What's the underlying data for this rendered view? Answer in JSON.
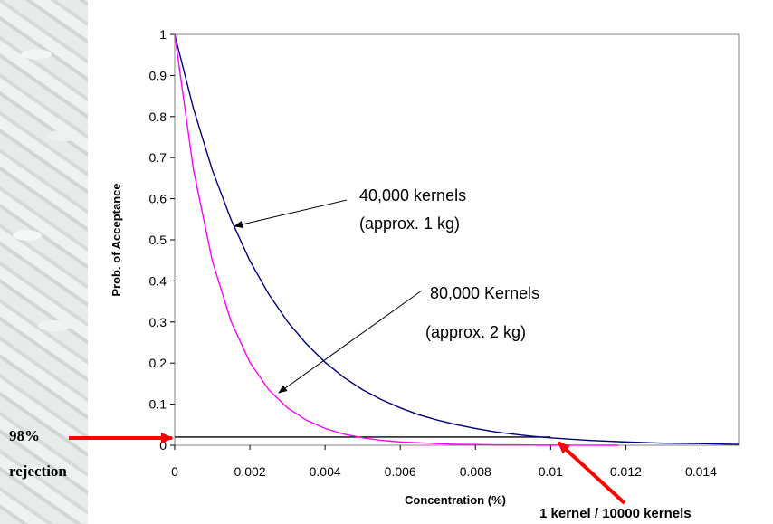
{
  "chart_data": {
    "type": "line",
    "xlabel": "Concentration (%)",
    "ylabel": "Prob. of Acceptance",
    "xlim": [
      0,
      0.015
    ],
    "ylim": [
      0,
      1
    ],
    "x_ticks": [
      "0",
      "0.002",
      "0.004",
      "0.006",
      "0.008",
      "0.01",
      "0.012",
      "0.014"
    ],
    "y_ticks": [
      "0",
      "0.1",
      "0.2",
      "0.3",
      "0.4",
      "0.5",
      "0.6",
      "0.7",
      "0.8",
      "0.9",
      "1"
    ],
    "series": [
      {
        "color": "#000080",
        "x": [
          0,
          0.0005,
          0.001,
          0.0015,
          0.002,
          0.0025,
          0.003,
          0.0035,
          0.004,
          0.0045,
          0.005,
          0.0055,
          0.006,
          0.0065,
          0.007,
          0.0075,
          0.008,
          0.0085,
          0.009,
          0.0095,
          0.01,
          0.011,
          0.012,
          0.013,
          0.014,
          0.015
        ],
        "y": [
          1,
          0.819,
          0.67,
          0.549,
          0.449,
          0.368,
          0.301,
          0.247,
          0.202,
          0.165,
          0.135,
          0.111,
          0.091,
          0.074,
          0.061,
          0.05,
          0.041,
          0.033,
          0.027,
          0.022,
          0.018,
          0.012,
          0.008,
          0.005,
          0.004,
          0.002
        ]
      },
      {
        "color": "#ff00ff",
        "x": [
          0,
          0.0005,
          0.001,
          0.0015,
          0.002,
          0.0025,
          0.003,
          0.0035,
          0.004,
          0.0045,
          0.005,
          0.0055,
          0.006,
          0.0065,
          0.007,
          0.0075,
          0.008,
          0.0085,
          0.009,
          0.0095,
          0.01,
          0.011,
          0.0118
        ],
        "y": [
          1,
          0.67,
          0.449,
          0.301,
          0.202,
          0.135,
          0.091,
          0.061,
          0.041,
          0.027,
          0.018,
          0.012,
          0.008,
          0.006,
          0.004,
          0.002,
          0.002,
          0.001,
          0.001,
          0.0005,
          0.0003,
          0.0001,
          0.0
        ]
      }
    ],
    "reference_line": {
      "y": 0.02,
      "x_end": 0.01,
      "color": "#000000"
    },
    "annotations": [
      {
        "id": "a40k",
        "lines": [
          "40,000 kernels",
          "(approx. 1 kg)"
        ],
        "points_to": [
          0.0015,
          0.55
        ]
      },
      {
        "id": "a80k",
        "lines": [
          "80,000 Kernels",
          "(approx. 2 kg)"
        ],
        "points_to": [
          0.0027,
          0.13
        ]
      }
    ]
  },
  "labels": {
    "rejection_line1": "98%",
    "rejection_line2": "rejection",
    "kernel_ratio": "1 kernel / 10000 kernels"
  },
  "colors": {
    "arrow_red": "#ff0000",
    "plot_border": "#808080"
  }
}
